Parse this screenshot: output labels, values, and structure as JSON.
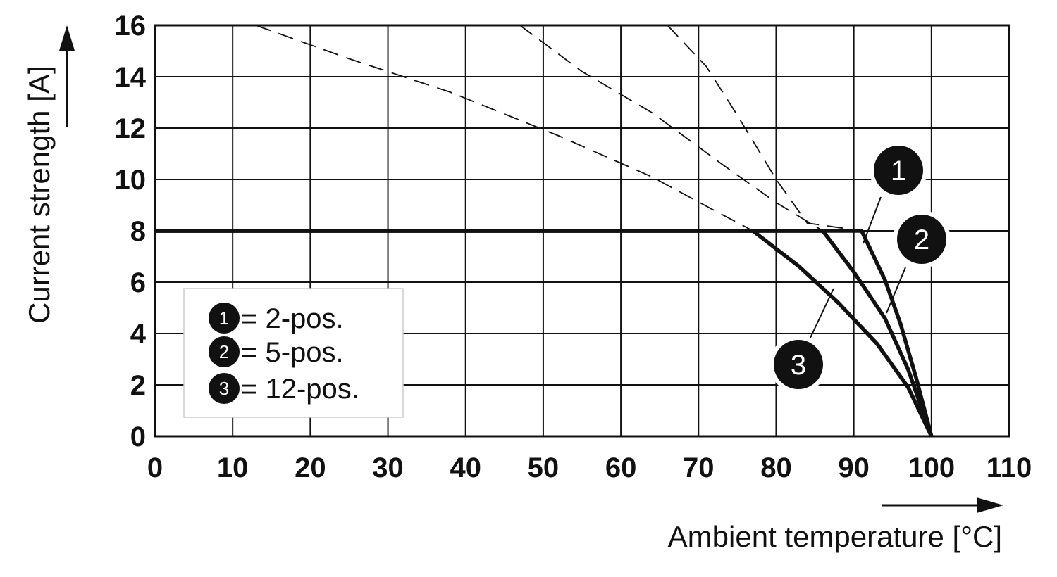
{
  "chart_data": {
    "type": "line",
    "xlabel": "Ambient temperature [°C]",
    "ylabel": "Current strength [A]",
    "xlim": [
      0,
      110
    ],
    "ylim": [
      0,
      16
    ],
    "x_ticks": [
      "0",
      "10",
      "20",
      "30",
      "40",
      "50",
      "60",
      "70",
      "80",
      "90",
      "100",
      "110"
    ],
    "y_ticks": [
      "0",
      "2",
      "4",
      "6",
      "8",
      "10",
      "12",
      "14",
      "16"
    ],
    "grid": true,
    "legend_position": "lower-left",
    "legend": [
      {
        "marker": "1",
        "label": "= 2-pos."
      },
      {
        "marker": "2",
        "label": "= 5-pos."
      },
      {
        "marker": "3",
        "label": "= 12-pos."
      }
    ],
    "series": [
      {
        "name": "1",
        "solid": [
          [
            0,
            8
          ],
          [
            91,
            8
          ],
          [
            94,
            6.1
          ],
          [
            96,
            4.4
          ],
          [
            98,
            2.3
          ],
          [
            100,
            0
          ]
        ],
        "dashed": [
          [
            66,
            16
          ],
          [
            71,
            14.4
          ],
          [
            75,
            12.5
          ],
          [
            80,
            10
          ],
          [
            84,
            8.3
          ],
          [
            91,
            8
          ]
        ]
      },
      {
        "name": "2",
        "solid": [
          [
            0,
            8
          ],
          [
            86,
            8
          ],
          [
            90,
            6.4
          ],
          [
            94,
            4.6
          ],
          [
            97,
            2.6
          ],
          [
            100,
            0
          ]
        ],
        "dashed": [
          [
            47,
            16
          ],
          [
            55,
            14.2
          ],
          [
            64,
            12.6
          ],
          [
            73,
            10.6
          ],
          [
            80,
            9.1
          ],
          [
            86,
            8
          ]
        ]
      },
      {
        "name": "3",
        "solid": [
          [
            0,
            8
          ],
          [
            77,
            8
          ],
          [
            83,
            6.6
          ],
          [
            88,
            5.2
          ],
          [
            93,
            3.6
          ],
          [
            97,
            1.9
          ],
          [
            100,
            0
          ]
        ],
        "dashed": [
          [
            13,
            16
          ],
          [
            25,
            14.7
          ],
          [
            38,
            13.4
          ],
          [
            52,
            11.7
          ],
          [
            64,
            10.1
          ],
          [
            72,
            8.8
          ],
          [
            77,
            8
          ]
        ]
      }
    ]
  }
}
